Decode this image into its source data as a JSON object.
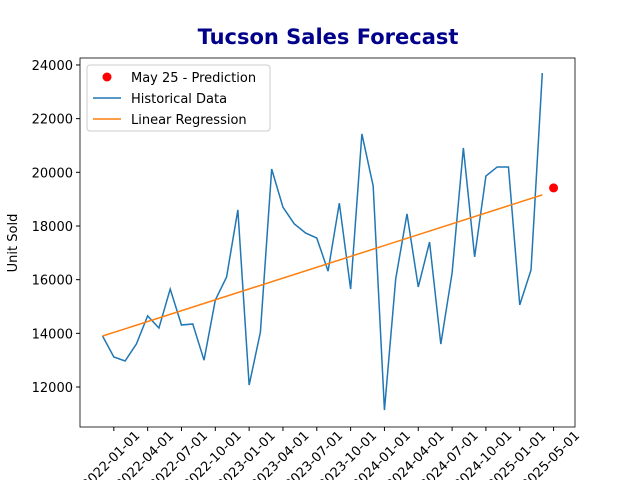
{
  "chart_data": {
    "type": "line",
    "title": "Tucson Sales Forecast",
    "y_label": "Unit Sold",
    "xlim": [
      -2,
      41.9
    ],
    "ylim": [
      10510,
      24260
    ],
    "xticks": [
      {
        "value": 1,
        "label": "2022-01-01"
      },
      {
        "value": 4,
        "label": "2022-04-01"
      },
      {
        "value": 7,
        "label": "2022-07-01"
      },
      {
        "value": 10,
        "label": "2022-10-01"
      },
      {
        "value": 13,
        "label": "2023-01-01"
      },
      {
        "value": 16,
        "label": "2023-04-01"
      },
      {
        "value": 19,
        "label": "2023-07-01"
      },
      {
        "value": 22,
        "label": "2023-10-01"
      },
      {
        "value": 25,
        "label": "2024-01-01"
      },
      {
        "value": 28,
        "label": "2024-04-01"
      },
      {
        "value": 31,
        "label": "2024-07-01"
      },
      {
        "value": 34,
        "label": "2024-10-01"
      },
      {
        "value": 37,
        "label": "2025-01-01"
      },
      {
        "value": 40,
        "label": "2025-05-01"
      }
    ],
    "yticks": [
      12000,
      14000,
      16000,
      18000,
      20000,
      22000,
      24000
    ],
    "legend": "upper left",
    "series": [
      {
        "name": "May 25 - Prediction",
        "kind": "scatter",
        "color": "#ff0000",
        "x": [
          40
        ],
        "values": [
          19420
        ]
      },
      {
        "name": "Historical Data",
        "kind": "line",
        "color": "#1f77b4",
        "x": [
          0,
          1,
          2,
          3,
          4,
          5,
          6,
          7,
          8,
          9,
          10,
          11,
          12,
          13,
          14,
          15,
          16,
          17,
          18,
          19,
          20,
          21,
          22,
          23,
          24,
          25,
          26,
          27,
          28,
          29,
          30,
          31,
          32,
          33,
          34,
          35,
          36,
          37,
          38,
          39
        ],
        "values": [
          13900,
          13120,
          12970,
          13600,
          14650,
          14200,
          15650,
          14310,
          14350,
          13000,
          15240,
          16100,
          18600,
          12070,
          14050,
          20120,
          18700,
          18080,
          17740,
          17550,
          16320,
          18850,
          15650,
          21430,
          19490,
          11140,
          16030,
          18450,
          15730,
          17400,
          13600,
          16250,
          20910,
          16850,
          19860,
          20200,
          20200,
          15060,
          16360,
          23700
        ]
      },
      {
        "name": "Linear Regression",
        "kind": "line",
        "color": "#ff7f0e",
        "x": [
          0,
          39
        ],
        "values": [
          13900,
          19160
        ]
      }
    ]
  }
}
